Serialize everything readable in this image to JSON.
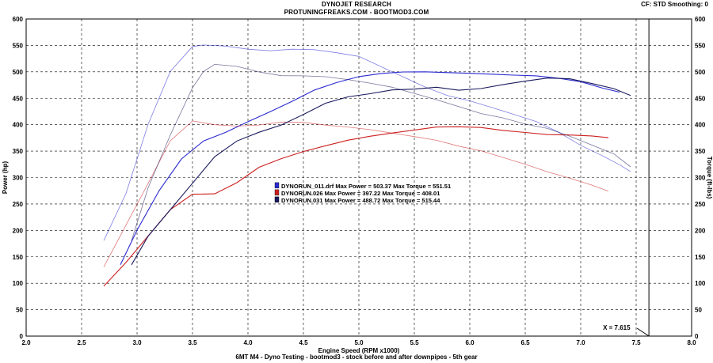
{
  "header": {
    "title": "DYNOJET RESEARCH",
    "subtitle": "PROTUNINGFREAKS.COM - BOOTMOD3.COM",
    "cf_info": "CF: STD  Smoothing: 0"
  },
  "footer": {
    "caption": "6MT M4 - Dyno Testing - bootmod3 - stock before and after downpipes - 5th gear"
  },
  "cursor": {
    "label": "X = 7.615",
    "x": 7.615
  },
  "colors": {
    "blue": "#2a2ad0",
    "red": "#cc2020",
    "navy": "#1a1a5e",
    "grid": "#000000"
  },
  "chart_data": {
    "type": "line",
    "title": "DYNOJET RESEARCH",
    "xlabel": "Engine Speed (RPM x1000)",
    "ylabel": "Power (hp)",
    "y2label": "Torque (ft-lbs)",
    "xlim": [
      2.0,
      8.0
    ],
    "ylim": [
      0,
      600
    ],
    "y2lim": [
      0,
      600
    ],
    "x_ticks": [
      "2.0",
      "2.5",
      "3.0",
      "3.5",
      "4.0",
      "4.5",
      "5.0",
      "5.5",
      "6.0",
      "6.5",
      "7.0",
      "7.5",
      "8.0"
    ],
    "y_ticks": [
      "0",
      "50",
      "100",
      "150",
      "200",
      "250",
      "300",
      "350",
      "400",
      "450",
      "500",
      "550",
      "600"
    ],
    "grid": true,
    "legend": [
      {
        "label": "DYNORUN_011.drf Max Power = 503.37     Max Torque = 551.51",
        "color": "#2a2ad0"
      },
      {
        "label": "DYNORUN.026 Max Power = 397.22      Max Torque = 408.01",
        "color": "#cc2020"
      },
      {
        "label": "DYNORUN.031 Max Power = 488.72      Max Torque = 515.44",
        "color": "#1a1a5e"
      }
    ],
    "series": [
      {
        "name": "DYNORUN_011.drf",
        "measure": "power",
        "color": "#2a2ad0",
        "x": [
          2.85,
          3.0,
          3.2,
          3.4,
          3.6,
          3.8,
          4.0,
          4.2,
          4.4,
          4.6,
          4.8,
          5.0,
          5.2,
          5.4,
          5.6,
          5.8,
          6.0,
          6.2,
          6.4,
          6.6,
          6.8,
          7.0,
          7.2,
          7.35
        ],
        "y": [
          135,
          200,
          275,
          335,
          370,
          385,
          405,
          425,
          445,
          465,
          480,
          490,
          496,
          500,
          500,
          499,
          498,
          496,
          493,
          492,
          488,
          482,
          470,
          462
        ]
      },
      {
        "name": "DYNORUN_011.drf",
        "measure": "torque",
        "color": "#2a2ad0",
        "x": [
          2.7,
          2.9,
          3.1,
          3.3,
          3.5,
          3.6,
          3.8,
          4.0,
          4.2,
          4.4,
          4.6,
          4.8,
          5.0,
          5.2,
          5.4,
          5.6,
          5.8,
          6.0,
          6.2,
          6.4,
          6.6,
          6.8,
          7.0,
          7.2,
          7.35,
          7.45
        ],
        "y": [
          180,
          270,
          400,
          500,
          548,
          551,
          548,
          542,
          540,
          543,
          541,
          537,
          530,
          510,
          490,
          470,
          455,
          445,
          433,
          420,
          405,
          385,
          360,
          340,
          325,
          312
        ]
      },
      {
        "name": "DYNORUN.026",
        "measure": "power",
        "color": "#cc2020",
        "x": [
          2.7,
          2.9,
          3.1,
          3.3,
          3.5,
          3.7,
          3.9,
          4.1,
          4.3,
          4.5,
          4.7,
          4.9,
          5.1,
          5.3,
          5.5,
          5.7,
          5.9,
          6.1,
          6.3,
          6.5,
          6.7,
          6.9,
          7.1,
          7.25
        ],
        "y": [
          95,
          140,
          190,
          240,
          268,
          270,
          290,
          320,
          335,
          350,
          360,
          370,
          378,
          385,
          390,
          395,
          397,
          394,
          390,
          385,
          382,
          380,
          378,
          376
        ]
      },
      {
        "name": "DYNORUN.026",
        "measure": "torque",
        "color": "#cc2020",
        "x": [
          2.7,
          2.9,
          3.1,
          3.3,
          3.5,
          3.7,
          3.9,
          4.1,
          4.3,
          4.5,
          4.7,
          4.9,
          5.1,
          5.3,
          5.5,
          5.7,
          5.9,
          6.1,
          6.3,
          6.5,
          6.7,
          6.9,
          7.1,
          7.25
        ],
        "y": [
          130,
          210,
          290,
          370,
          408,
          400,
          397,
          400,
          405,
          404,
          400,
          395,
          390,
          384,
          378,
          370,
          360,
          350,
          338,
          325,
          310,
          298,
          285,
          275
        ]
      },
      {
        "name": "DYNORUN.031",
        "measure": "power",
        "color": "#1a1a5e",
        "x": [
          2.95,
          3.1,
          3.3,
          3.5,
          3.7,
          3.9,
          4.1,
          4.3,
          4.5,
          4.7,
          4.9,
          5.1,
          5.3,
          5.5,
          5.7,
          5.9,
          6.1,
          6.3,
          6.5,
          6.7,
          6.9,
          7.1,
          7.3,
          7.45
        ],
        "y": [
          135,
          190,
          240,
          290,
          340,
          370,
          385,
          400,
          420,
          440,
          452,
          458,
          465,
          468,
          470,
          466,
          468,
          475,
          482,
          488,
          486,
          478,
          468,
          455
        ]
      },
      {
        "name": "DYNORUN.031",
        "measure": "torque",
        "color": "#1a1a5e",
        "x": [
          2.95,
          3.1,
          3.3,
          3.5,
          3.6,
          3.7,
          3.9,
          4.1,
          4.3,
          4.5,
          4.7,
          4.9,
          5.1,
          5.3,
          5.5,
          5.7,
          5.9,
          6.1,
          6.3,
          6.5,
          6.7,
          6.9,
          7.1,
          7.3,
          7.45
        ],
        "y": [
          180,
          280,
          380,
          470,
          500,
          515,
          510,
          500,
          492,
          492,
          490,
          485,
          478,
          470,
          460,
          448,
          435,
          422,
          412,
          402,
          392,
          378,
          362,
          345,
          320
        ]
      }
    ]
  }
}
